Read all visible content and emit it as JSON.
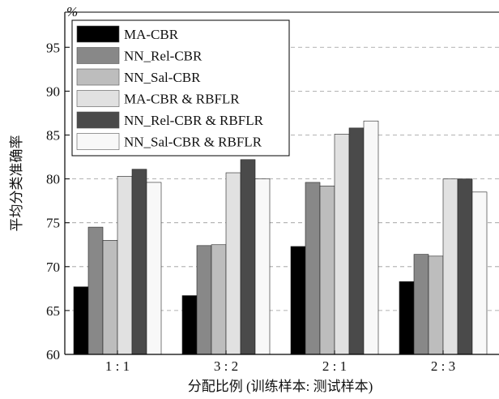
{
  "chart_data": {
    "type": "bar",
    "unit_label": "%",
    "xlabel": "分配比例 (训练样本: 测试样本)",
    "ylabel": "平均分类准确率",
    "categories": [
      "1 : 1",
      "3 : 2",
      "2 : 1",
      "2 : 3"
    ],
    "ylim": [
      60,
      99
    ],
    "yticks": [
      60,
      65,
      70,
      75,
      80,
      85,
      90,
      95
    ],
    "grid": true,
    "legend_position": "top-left",
    "series": [
      {
        "name": "MA-CBR",
        "color": "#000000",
        "values": [
          67.7,
          66.7,
          72.3,
          68.3
        ]
      },
      {
        "name": "NN_Rel-CBR",
        "color": "#888888",
        "values": [
          74.5,
          72.4,
          79.6,
          71.4
        ]
      },
      {
        "name": "NN_Sal-CBR",
        "color": "#bdbdbd",
        "values": [
          73.0,
          72.5,
          79.2,
          71.2
        ]
      },
      {
        "name": "MA-CBR & RBFLR",
        "color": "#e1e1e1",
        "values": [
          80.3,
          80.7,
          85.1,
          80.0
        ]
      },
      {
        "name": "NN_Rel-CBR & RBFLR",
        "color": "#4a4a4a",
        "values": [
          81.1,
          82.2,
          85.8,
          80.0
        ]
      },
      {
        "name": "NN_Sal-CBR & RBFLR",
        "color": "#f8f8f8",
        "values": [
          79.6,
          80.0,
          86.6,
          78.5
        ]
      }
    ]
  }
}
